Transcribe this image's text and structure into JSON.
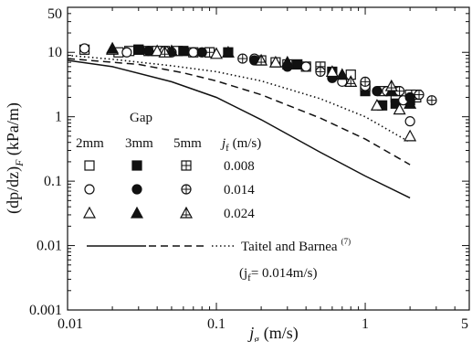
{
  "chart_data": {
    "type": "scatter",
    "xscale": "log",
    "yscale": "log",
    "xlim": [
      0.01,
      5
    ],
    "ylim": [
      0.001,
      50
    ],
    "grid": false,
    "xlabel": {
      "main": "j",
      "sub": "g",
      "rest": " (m/s)"
    },
    "ylabel": {
      "pre": "(dp/dz)",
      "sub": "F",
      "rest": " (kPa/m)"
    },
    "xticks": [
      {
        "v": 0.01,
        "label": "0.01"
      },
      {
        "v": 0.1,
        "label": "0.1"
      },
      {
        "v": 1,
        "label": "1"
      },
      {
        "v": 5,
        "label": "5"
      }
    ],
    "yticks": [
      {
        "v": 0.001,
        "label": "0.001"
      },
      {
        "v": 0.01,
        "label": "0.01"
      },
      {
        "v": 0.1,
        "label": "0.1"
      },
      {
        "v": 1,
        "label": "1"
      },
      {
        "v": 10,
        "label": "10"
      },
      {
        "v": 50,
        "label": "50"
      }
    ],
    "legend": {
      "title": "Gap",
      "column_headers": [
        "2mm",
        "3mm",
        "5mm"
      ],
      "jf_header": {
        "main": "j",
        "sub": "f",
        "rest": " (m/s)"
      },
      "rows": [
        {
          "jf": "0.008",
          "shapes": [
            "square-open",
            "square-filled",
            "square-cross"
          ]
        },
        {
          "jf": "0.014",
          "shapes": [
            "circle-open",
            "circle-filled",
            "circle-cross"
          ]
        },
        {
          "jf": "0.024",
          "shapes": [
            "triangle-open",
            "triangle-filled",
            "triangle-cross"
          ]
        }
      ],
      "model_label": "Taitel and Barnea",
      "model_ref": "(7)",
      "model_note": {
        "pre": "(j",
        "sub": "f",
        "rest": "= 0.014m/s)"
      }
    },
    "series": [
      {
        "marker": "square-open",
        "jf": 0.008,
        "gap": "2mm",
        "x": [
          0.013,
          0.022,
          0.026,
          0.03,
          0.035,
          0.045,
          0.055,
          0.07,
          0.09,
          0.2,
          0.3,
          0.4,
          0.8,
          1.0,
          1.3,
          1.6,
          2.0,
          2.2
        ],
        "y": [
          11,
          10,
          10.5,
          11,
          10.5,
          10.5,
          10.5,
          10,
          10,
          7.5,
          6.5,
          6,
          4.5,
          3,
          2.5,
          2,
          2.2,
          2
        ]
      },
      {
        "marker": "square-filled",
        "jf": 0.008,
        "gap": "3mm",
        "x": [
          0.03,
          0.06,
          0.12,
          0.35,
          0.6,
          1.0,
          1.3,
          1.6,
          2.0
        ],
        "y": [
          11,
          10.5,
          10,
          6.5,
          5,
          2.5,
          1.5,
          1.6,
          1.8
        ]
      },
      {
        "marker": "square-cross",
        "jf": 0.008,
        "gap": "5mm",
        "x": [
          0.04,
          0.09,
          0.25,
          0.5,
          1.0,
          1.6,
          2.2
        ],
        "y": [
          10.5,
          10,
          7,
          6,
          3,
          2.5,
          2.2
        ]
      },
      {
        "marker": "circle-open",
        "jf": 0.014,
        "gap": "2mm",
        "x": [
          0.013,
          0.025,
          0.045,
          0.07,
          0.18,
          0.4,
          0.7,
          1.0,
          1.4,
          1.8,
          2.0
        ],
        "y": [
          11.5,
          10,
          10.5,
          10,
          8,
          6,
          3.5,
          3,
          2.5,
          1.8,
          0.85
        ]
      },
      {
        "marker": "circle-filled",
        "jf": 0.014,
        "gap": "3mm",
        "x": [
          0.035,
          0.08,
          0.18,
          0.3,
          0.6,
          1.2,
          2.0
        ],
        "y": [
          10.5,
          10,
          7.5,
          6,
          4,
          2.5,
          2
        ]
      },
      {
        "marker": "circle-cross",
        "jf": 0.014,
        "gap": "5mm",
        "x": [
          0.05,
          0.15,
          0.5,
          1.0,
          1.7,
          2.3,
          2.8
        ],
        "y": [
          10,
          8,
          5,
          3.5,
          2.5,
          2.2,
          1.8
        ]
      },
      {
        "marker": "triangle-open",
        "jf": 0.024,
        "gap": "2mm",
        "x": [
          0.02,
          0.04,
          0.1,
          0.25,
          0.6,
          1.2,
          1.7,
          2.0
        ],
        "y": [
          11,
          10.5,
          9.5,
          7,
          5,
          1.5,
          1.3,
          0.5
        ]
      },
      {
        "marker": "triangle-filled",
        "jf": 0.024,
        "gap": "3mm",
        "x": [
          0.02,
          0.05,
          0.12,
          0.3,
          0.7,
          1.5,
          2.0
        ],
        "y": [
          11.5,
          10.5,
          10,
          7,
          4.5,
          2.5,
          1.6
        ]
      },
      {
        "marker": "triangle-cross",
        "jf": 0.024,
        "gap": "5mm",
        "x": [
          0.045,
          0.2,
          0.8,
          1.5
        ],
        "y": [
          10,
          7.5,
          3.5,
          3
        ]
      }
    ],
    "lines": [
      {
        "style": "solid",
        "x": [
          0.01,
          0.02,
          0.05,
          0.1,
          0.2,
          0.5,
          1.0,
          2.0
        ],
        "y": [
          7.5,
          6,
          3.5,
          2.0,
          0.9,
          0.28,
          0.12,
          0.055
        ]
      },
      {
        "style": "dashed",
        "x": [
          0.01,
          0.03,
          0.06,
          0.1,
          0.2,
          0.5,
          1.0,
          2.0
        ],
        "y": [
          8,
          6.5,
          4.8,
          3.6,
          2.2,
          0.95,
          0.45,
          0.18
        ]
      },
      {
        "style": "dotted",
        "x": [
          0.01,
          0.02,
          0.05,
          0.1,
          0.2,
          0.5,
          1.0,
          2.0
        ],
        "y": [
          9,
          7.8,
          6.2,
          5,
          3.6,
          1.9,
          1.0,
          0.4
        ]
      }
    ]
  }
}
